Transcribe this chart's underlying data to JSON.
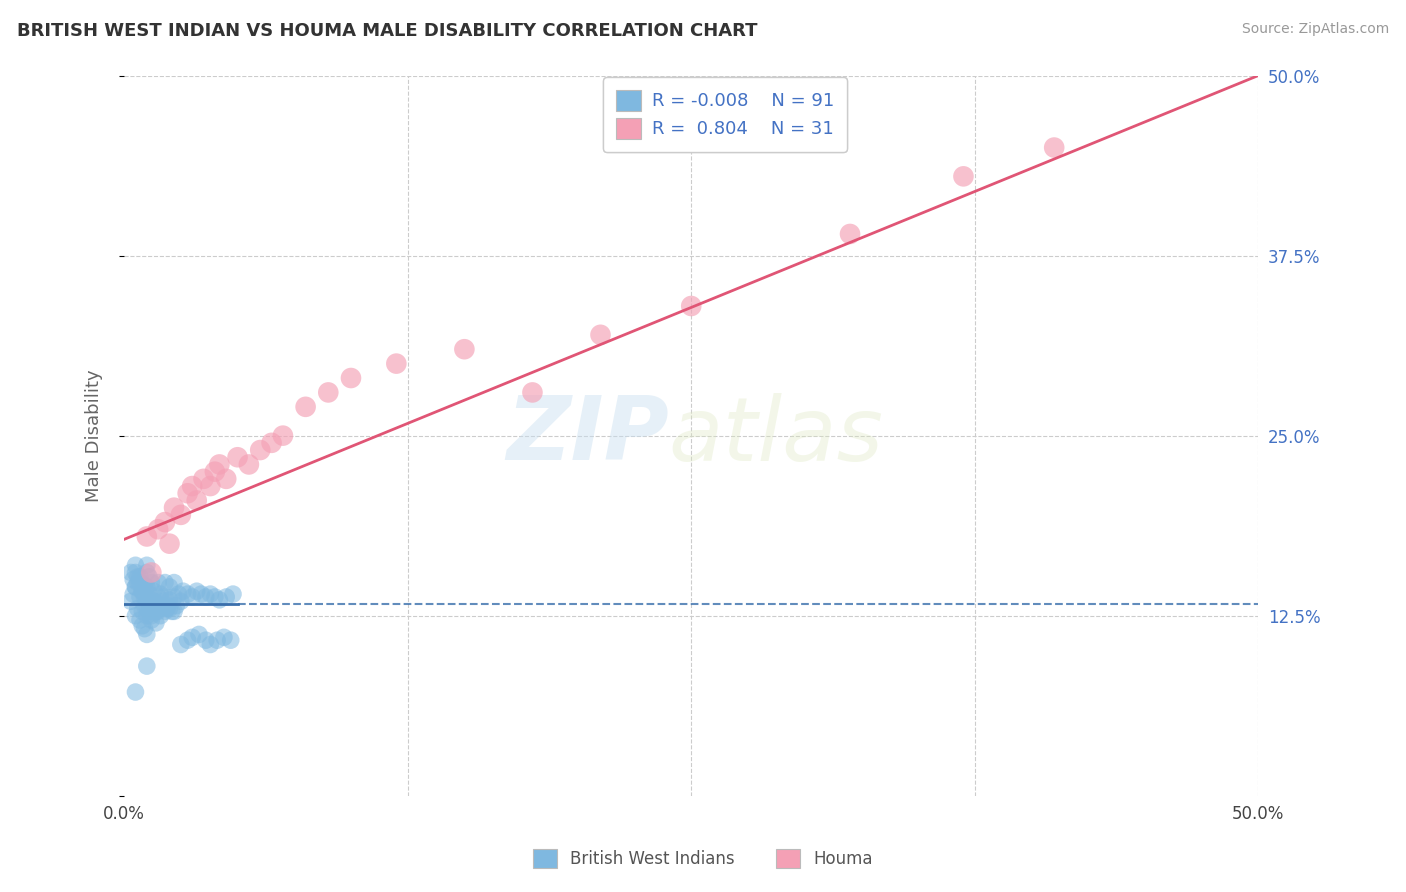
{
  "title": "BRITISH WEST INDIAN VS HOUMA MALE DISABILITY CORRELATION CHART",
  "source": "Source: ZipAtlas.com",
  "ylabel": "Male Disability",
  "xlim": [
    0.0,
    0.5
  ],
  "ylim": [
    0.0,
    0.5
  ],
  "blue_color": "#7fb8e0",
  "pink_color": "#f4a0b5",
  "blue_line_color": "#3a6fac",
  "pink_line_color": "#e05575",
  "blue_R": -0.008,
  "blue_N": 91,
  "pink_R": 0.804,
  "pink_N": 31,
  "legend_label_blue": "British West Indians",
  "legend_label_pink": "Houma",
  "watermark_zip": "ZIP",
  "watermark_atlas": "atlas",
  "background_color": "#ffffff",
  "grid_color": "#cccccc",
  "title_color": "#333333",
  "right_tick_color": "#4472c4",
  "blue_scatter_x": [
    0.003,
    0.004,
    0.005,
    0.005,
    0.005,
    0.006,
    0.006,
    0.007,
    0.007,
    0.007,
    0.008,
    0.008,
    0.008,
    0.009,
    0.009,
    0.009,
    0.01,
    0.01,
    0.01,
    0.01,
    0.01,
    0.01,
    0.011,
    0.011,
    0.011,
    0.012,
    0.012,
    0.012,
    0.013,
    0.013,
    0.014,
    0.014,
    0.015,
    0.015,
    0.015,
    0.016,
    0.016,
    0.017,
    0.018,
    0.018,
    0.019,
    0.02,
    0.02,
    0.021,
    0.022,
    0.022,
    0.023,
    0.024,
    0.025,
    0.026,
    0.028,
    0.03,
    0.032,
    0.034,
    0.036,
    0.038,
    0.04,
    0.042,
    0.045,
    0.048,
    0.003,
    0.004,
    0.005,
    0.005,
    0.006,
    0.007,
    0.008,
    0.009,
    0.01,
    0.011,
    0.012,
    0.013,
    0.014,
    0.015,
    0.016,
    0.017,
    0.018,
    0.019,
    0.02,
    0.022,
    0.025,
    0.028,
    0.03,
    0.033,
    0.036,
    0.038,
    0.041,
    0.044,
    0.047,
    0.01,
    0.005
  ],
  "blue_scatter_y": [
    0.135,
    0.14,
    0.125,
    0.145,
    0.155,
    0.13,
    0.148,
    0.122,
    0.138,
    0.152,
    0.128,
    0.142,
    0.118,
    0.132,
    0.146,
    0.116,
    0.125,
    0.135,
    0.145,
    0.155,
    0.16,
    0.112,
    0.128,
    0.14,
    0.152,
    0.122,
    0.136,
    0.148,
    0.13,
    0.142,
    0.12,
    0.134,
    0.128,
    0.138,
    0.148,
    0.125,
    0.14,
    0.132,
    0.138,
    0.148,
    0.13,
    0.136,
    0.145,
    0.128,
    0.138,
    0.148,
    0.132,
    0.14,
    0.135,
    0.142,
    0.14,
    0.138,
    0.142,
    0.14,
    0.138,
    0.14,
    0.138,
    0.136,
    0.138,
    0.14,
    0.155,
    0.15,
    0.16,
    0.145,
    0.152,
    0.148,
    0.142,
    0.138,
    0.132,
    0.128,
    0.125,
    0.13,
    0.128,
    0.132,
    0.13,
    0.135,
    0.128,
    0.132,
    0.13,
    0.128,
    0.105,
    0.108,
    0.11,
    0.112,
    0.108,
    0.105,
    0.108,
    0.11,
    0.108,
    0.09,
    0.072
  ],
  "pink_scatter_x": [
    0.01,
    0.012,
    0.015,
    0.018,
    0.02,
    0.022,
    0.025,
    0.028,
    0.03,
    0.032,
    0.035,
    0.038,
    0.04,
    0.042,
    0.045,
    0.05,
    0.055,
    0.06,
    0.065,
    0.07,
    0.08,
    0.09,
    0.1,
    0.12,
    0.15,
    0.18,
    0.21,
    0.25,
    0.32,
    0.37,
    0.41
  ],
  "pink_scatter_y": [
    0.18,
    0.155,
    0.185,
    0.19,
    0.175,
    0.2,
    0.195,
    0.21,
    0.215,
    0.205,
    0.22,
    0.215,
    0.225,
    0.23,
    0.22,
    0.235,
    0.23,
    0.24,
    0.245,
    0.25,
    0.27,
    0.28,
    0.29,
    0.3,
    0.31,
    0.28,
    0.32,
    0.34,
    0.39,
    0.43,
    0.45
  ],
  "pink_line_x0": 0.0,
  "pink_line_y0": 0.178,
  "pink_line_x1": 0.5,
  "pink_line_y1": 0.5,
  "blue_line_y": 0.133
}
